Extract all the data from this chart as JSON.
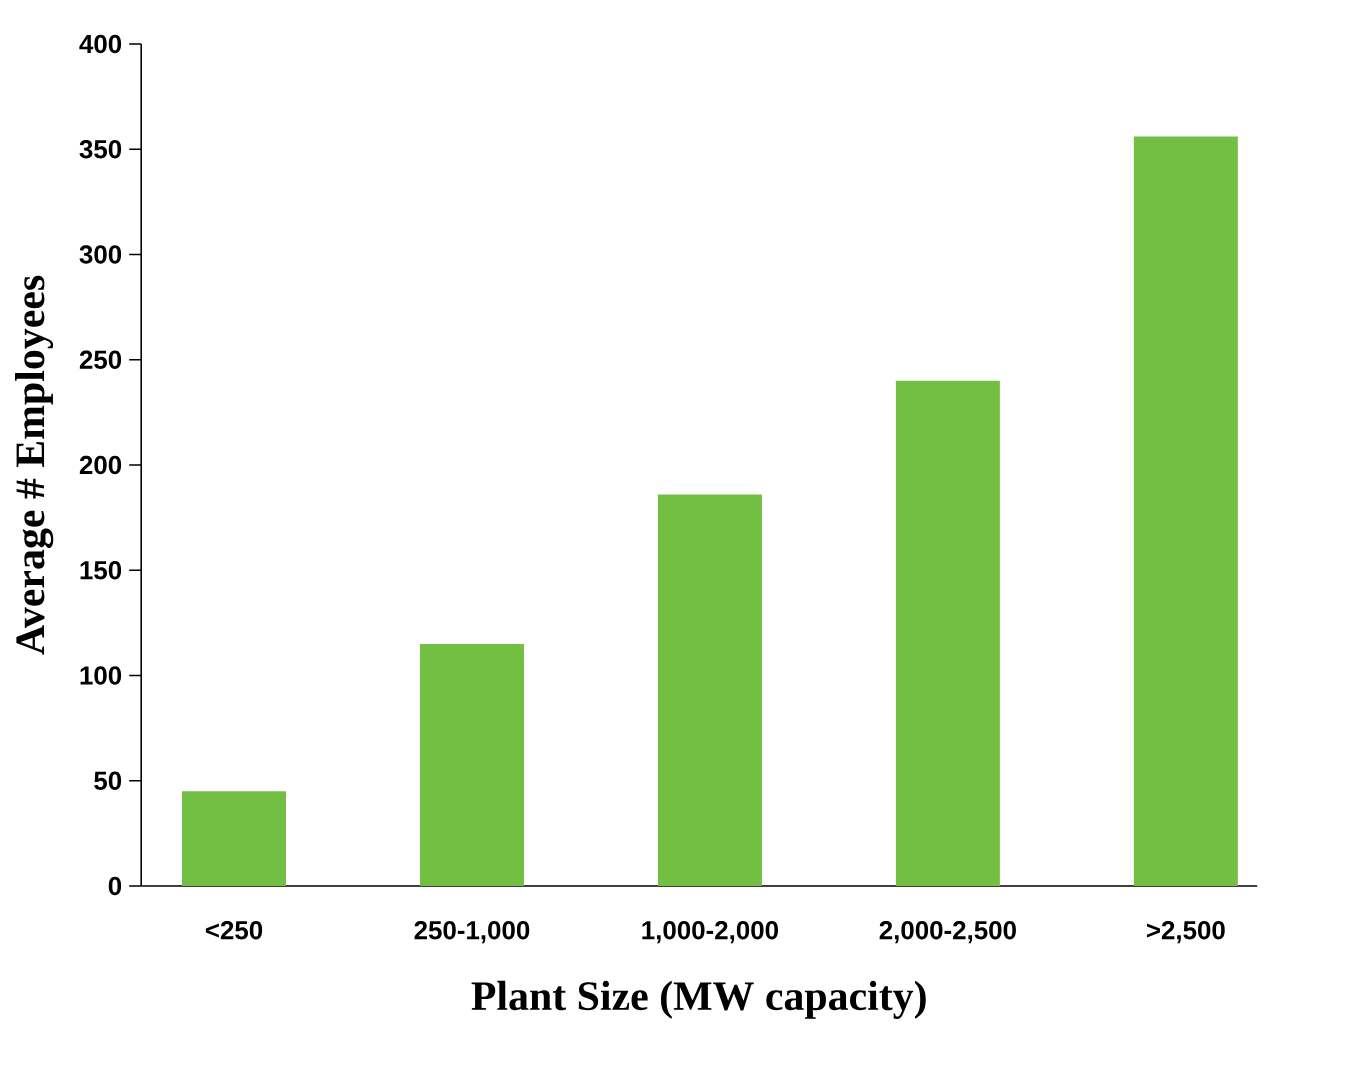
{
  "chart_data": {
    "type": "bar",
    "xlabel": "Plant Size (MW capacity)",
    "ylabel": "Average # Employees",
    "categories": [
      "<250",
      "250-1,000",
      "1,000-2,000",
      "2,000-2,500",
      ">2,500"
    ],
    "values": [
      45,
      115,
      186,
      240,
      356
    ],
    "color": "#72bf44",
    "ylim": [
      0,
      400
    ],
    "yticks": [
      0,
      50,
      100,
      150,
      200,
      250,
      300,
      350,
      400
    ]
  }
}
